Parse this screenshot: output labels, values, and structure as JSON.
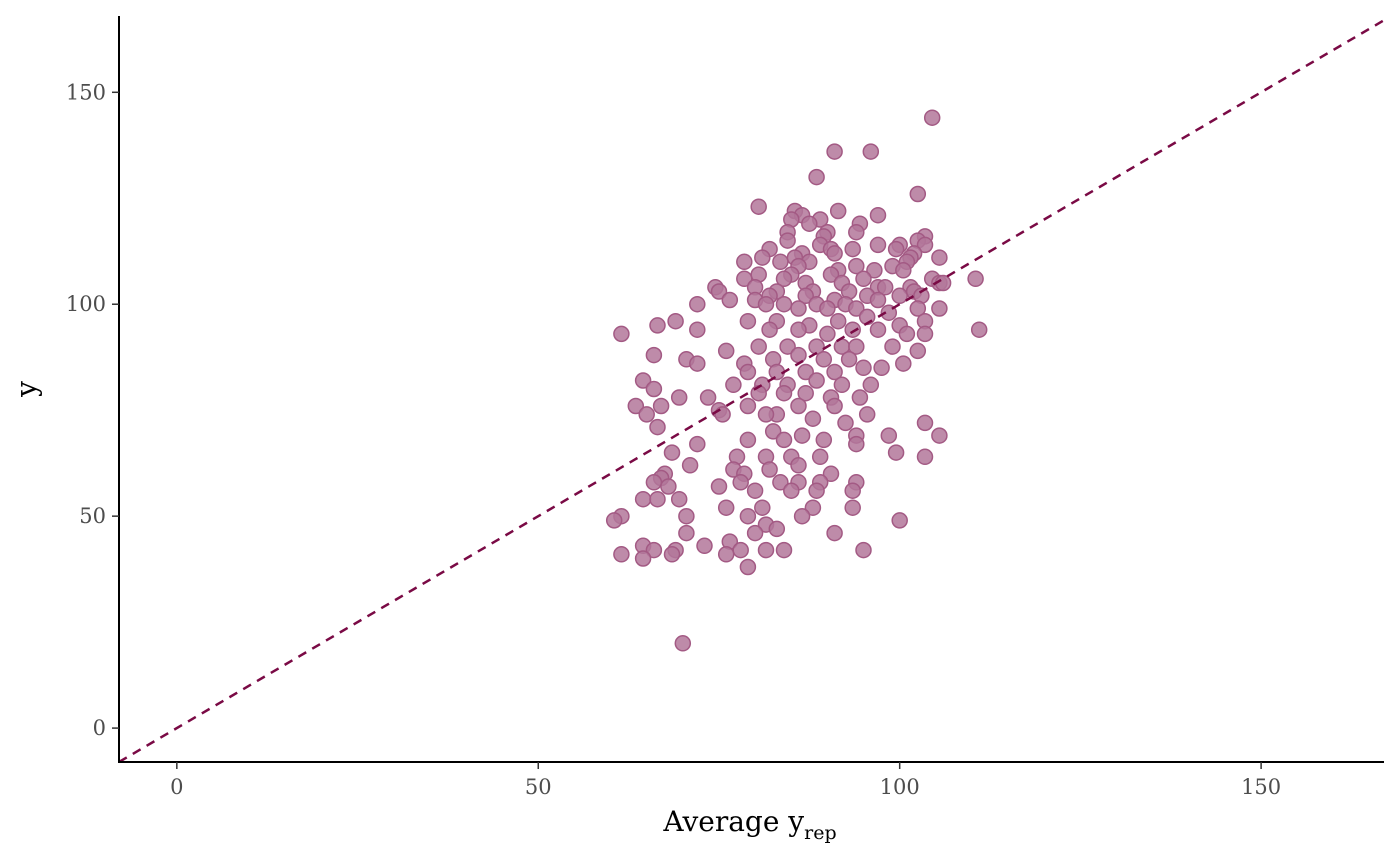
{
  "chart_data": {
    "type": "scatter",
    "xlabel": "Average y",
    "xlabel_subscript": "rep",
    "ylabel": "y",
    "xlim": [
      -8,
      167
    ],
    "ylim": [
      -8,
      168
    ],
    "x_ticks": [
      0,
      50,
      100,
      150
    ],
    "y_ticks": [
      0,
      50,
      100,
      150
    ],
    "grid": false,
    "reference_line": {
      "label": "y = x",
      "style": "dashed",
      "color": "#7a0a45"
    },
    "point_fill": "#b3779a",
    "point_stroke": "#a35a84",
    "points": [
      [
        104.5,
        144
      ],
      [
        91,
        136
      ],
      [
        96,
        136
      ],
      [
        88.5,
        130
      ],
      [
        102.5,
        126
      ],
      [
        80.5,
        123
      ],
      [
        85.5,
        122
      ],
      [
        91.5,
        122
      ],
      [
        97,
        121
      ],
      [
        86.5,
        121
      ],
      [
        89,
        120
      ],
      [
        85,
        120
      ],
      [
        94.5,
        119
      ],
      [
        87.5,
        119
      ],
      [
        90,
        117
      ],
      [
        94,
        117
      ],
      [
        84.5,
        117
      ],
      [
        89.5,
        116
      ],
      [
        103.5,
        116
      ],
      [
        84.5,
        115
      ],
      [
        102.5,
        115
      ],
      [
        100,
        114
      ],
      [
        89,
        114
      ],
      [
        97,
        114
      ],
      [
        103.5,
        114
      ],
      [
        82,
        113
      ],
      [
        90.5,
        113
      ],
      [
        93.5,
        113
      ],
      [
        99.5,
        113
      ],
      [
        86.5,
        112
      ],
      [
        91,
        112
      ],
      [
        102,
        112
      ],
      [
        101.5,
        111
      ],
      [
        81,
        111
      ],
      [
        85.5,
        111
      ],
      [
        105.5,
        111
      ],
      [
        78.5,
        110
      ],
      [
        83.5,
        110
      ],
      [
        87.5,
        110
      ],
      [
        94,
        109
      ],
      [
        101,
        110
      ],
      [
        99,
        109
      ],
      [
        86,
        109
      ],
      [
        91.5,
        108
      ],
      [
        96.5,
        108
      ],
      [
        100.5,
        108
      ],
      [
        80.5,
        107
      ],
      [
        85,
        107
      ],
      [
        90.5,
        107
      ],
      [
        95,
        106
      ],
      [
        104.5,
        106
      ],
      [
        110.5,
        106
      ],
      [
        78.5,
        106
      ],
      [
        84,
        106
      ],
      [
        87,
        105
      ],
      [
        92,
        105
      ],
      [
        97,
        104
      ],
      [
        101.5,
        104
      ],
      [
        105.5,
        105
      ],
      [
        106,
        105
      ],
      [
        80,
        104
      ],
      [
        83,
        103
      ],
      [
        88,
        103
      ],
      [
        93,
        103
      ],
      [
        98,
        104
      ],
      [
        102,
        103
      ],
      [
        74.5,
        104
      ],
      [
        82,
        102
      ],
      [
        87,
        102
      ],
      [
        91,
        101
      ],
      [
        95.5,
        102
      ],
      [
        100,
        102
      ],
      [
        103,
        102
      ],
      [
        75,
        103
      ],
      [
        76.5,
        101
      ],
      [
        80,
        101
      ],
      [
        84,
        100
      ],
      [
        88.5,
        100
      ],
      [
        92.5,
        100
      ],
      [
        97,
        101
      ],
      [
        105.5,
        99
      ],
      [
        72,
        100
      ],
      [
        81.5,
        100
      ],
      [
        86,
        99
      ],
      [
        90,
        99
      ],
      [
        94,
        99
      ],
      [
        98.5,
        98
      ],
      [
        102.5,
        99
      ],
      [
        79,
        96
      ],
      [
        83,
        96
      ],
      [
        87.5,
        95
      ],
      [
        91.5,
        96
      ],
      [
        95.5,
        97
      ],
      [
        100,
        95
      ],
      [
        103.5,
        96
      ],
      [
        61.5,
        93
      ],
      [
        66.5,
        95
      ],
      [
        69,
        96
      ],
      [
        72,
        94
      ],
      [
        111,
        94
      ],
      [
        82,
        94
      ],
      [
        86,
        94
      ],
      [
        90,
        93
      ],
      [
        93.5,
        94
      ],
      [
        97,
        94
      ],
      [
        101,
        93
      ],
      [
        103.5,
        93
      ],
      [
        80.5,
        90
      ],
      [
        84.5,
        90
      ],
      [
        88.5,
        90
      ],
      [
        92,
        90
      ],
      [
        94,
        90
      ],
      [
        99,
        90
      ],
      [
        102.5,
        89
      ],
      [
        66,
        88
      ],
      [
        70.5,
        87
      ],
      [
        76,
        89
      ],
      [
        78.5,
        86
      ],
      [
        82.5,
        87
      ],
      [
        86,
        88
      ],
      [
        89.5,
        87
      ],
      [
        93,
        87
      ],
      [
        97.5,
        85
      ],
      [
        100.5,
        86
      ],
      [
        72,
        86
      ],
      [
        79,
        84
      ],
      [
        83,
        84
      ],
      [
        87,
        84
      ],
      [
        91,
        84
      ],
      [
        95,
        85
      ],
      [
        64.5,
        82
      ],
      [
        69.5,
        78
      ],
      [
        77,
        81
      ],
      [
        81,
        81
      ],
      [
        84.5,
        81
      ],
      [
        88.5,
        82
      ],
      [
        92,
        81
      ],
      [
        96,
        81
      ],
      [
        66,
        80
      ],
      [
        73.5,
        78
      ],
      [
        80.5,
        79
      ],
      [
        84,
        79
      ],
      [
        87,
        79
      ],
      [
        90.5,
        78
      ],
      [
        94.5,
        78
      ],
      [
        63.5,
        76
      ],
      [
        67,
        76
      ],
      [
        75,
        75
      ],
      [
        79,
        76
      ],
      [
        83,
        74
      ],
      [
        86,
        76
      ],
      [
        91,
        76
      ],
      [
        95.5,
        74
      ],
      [
        65,
        74
      ],
      [
        66.5,
        71
      ],
      [
        75.5,
        74
      ],
      [
        81.5,
        74
      ],
      [
        88,
        73
      ],
      [
        92.5,
        72
      ],
      [
        103.5,
        72
      ],
      [
        82.5,
        70
      ],
      [
        86.5,
        69
      ],
      [
        94,
        69
      ],
      [
        98.5,
        69
      ],
      [
        105.5,
        69
      ],
      [
        72,
        67
      ],
      [
        79,
        68
      ],
      [
        84,
        68
      ],
      [
        89.5,
        68
      ],
      [
        94,
        67
      ],
      [
        68.5,
        65
      ],
      [
        77.5,
        64
      ],
      [
        81.5,
        64
      ],
      [
        85,
        64
      ],
      [
        89,
        64
      ],
      [
        99.5,
        65
      ],
      [
        103.5,
        64
      ],
      [
        71,
        62
      ],
      [
        77,
        61
      ],
      [
        82,
        61
      ],
      [
        86,
        62
      ],
      [
        90.5,
        60
      ],
      [
        67.5,
        60
      ],
      [
        78.5,
        60
      ],
      [
        67,
        59
      ],
      [
        75,
        57
      ],
      [
        78,
        58
      ],
      [
        83.5,
        58
      ],
      [
        86,
        58
      ],
      [
        89,
        58
      ],
      [
        94,
        58
      ],
      [
        66,
        58
      ],
      [
        68,
        57
      ],
      [
        80,
        56
      ],
      [
        85,
        56
      ],
      [
        88.5,
        56
      ],
      [
        93.5,
        56
      ],
      [
        64.5,
        54
      ],
      [
        66.5,
        54
      ],
      [
        69.5,
        54
      ],
      [
        76,
        52
      ],
      [
        81,
        52
      ],
      [
        88,
        52
      ],
      [
        93.5,
        52
      ],
      [
        61.5,
        50
      ],
      [
        70.5,
        50
      ],
      [
        79,
        50
      ],
      [
        86.5,
        50
      ],
      [
        60.5,
        49
      ],
      [
        100,
        49
      ],
      [
        81.5,
        48
      ],
      [
        80,
        46
      ],
      [
        70.5,
        46
      ],
      [
        83,
        47
      ],
      [
        91,
        46
      ],
      [
        64.5,
        43
      ],
      [
        73,
        43
      ],
      [
        76.5,
        44
      ],
      [
        66,
        42
      ],
      [
        69,
        42
      ],
      [
        78,
        42
      ],
      [
        81.5,
        42
      ],
      [
        84,
        42
      ],
      [
        95,
        42
      ],
      [
        61.5,
        41
      ],
      [
        68.5,
        41
      ],
      [
        76,
        41
      ],
      [
        64.5,
        40
      ],
      [
        79,
        38
      ],
      [
        70,
        20
      ]
    ]
  }
}
